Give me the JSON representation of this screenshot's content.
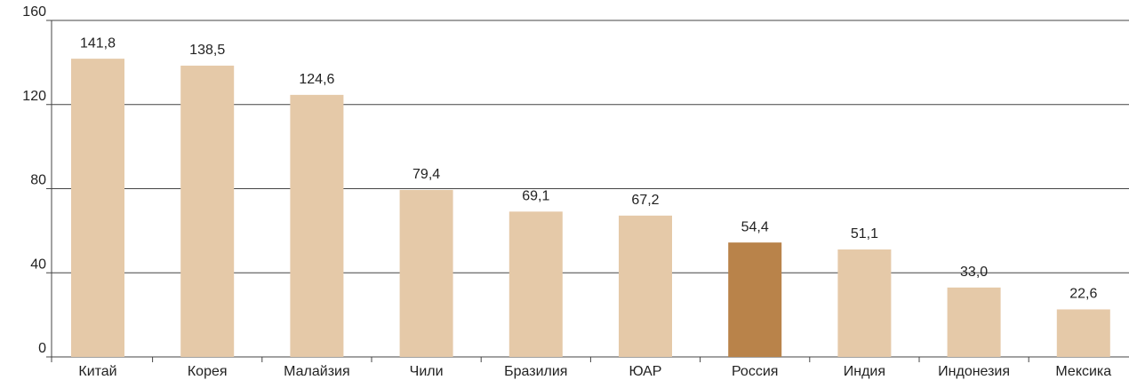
{
  "chart_data": {
    "type": "bar",
    "categories": [
      "Китай",
      "Корея",
      "Малайзия",
      "Чили",
      "Бразилия",
      "ЮАР",
      "Россия",
      "Индия",
      "Индонезия",
      "Мексика"
    ],
    "values": [
      141.8,
      138.5,
      124.6,
      79.4,
      69.1,
      67.2,
      54.4,
      51.1,
      33.0,
      22.6
    ],
    "value_labels": [
      "141,8",
      "138,5",
      "124,6",
      "79,4",
      "69,1",
      "67,2",
      "54,4",
      "51,1",
      "33,0",
      "22,6"
    ],
    "colors": [
      "#e5c9a8",
      "#e5c9a8",
      "#e5c9a8",
      "#e5c9a8",
      "#e5c9a8",
      "#e5c9a8",
      "#b9834a",
      "#e5c9a8",
      "#e5c9a8",
      "#e5c9a8"
    ],
    "ylim": [
      0,
      160
    ],
    "yticks": [
      0,
      40,
      80,
      120,
      160
    ],
    "grid": true
  }
}
